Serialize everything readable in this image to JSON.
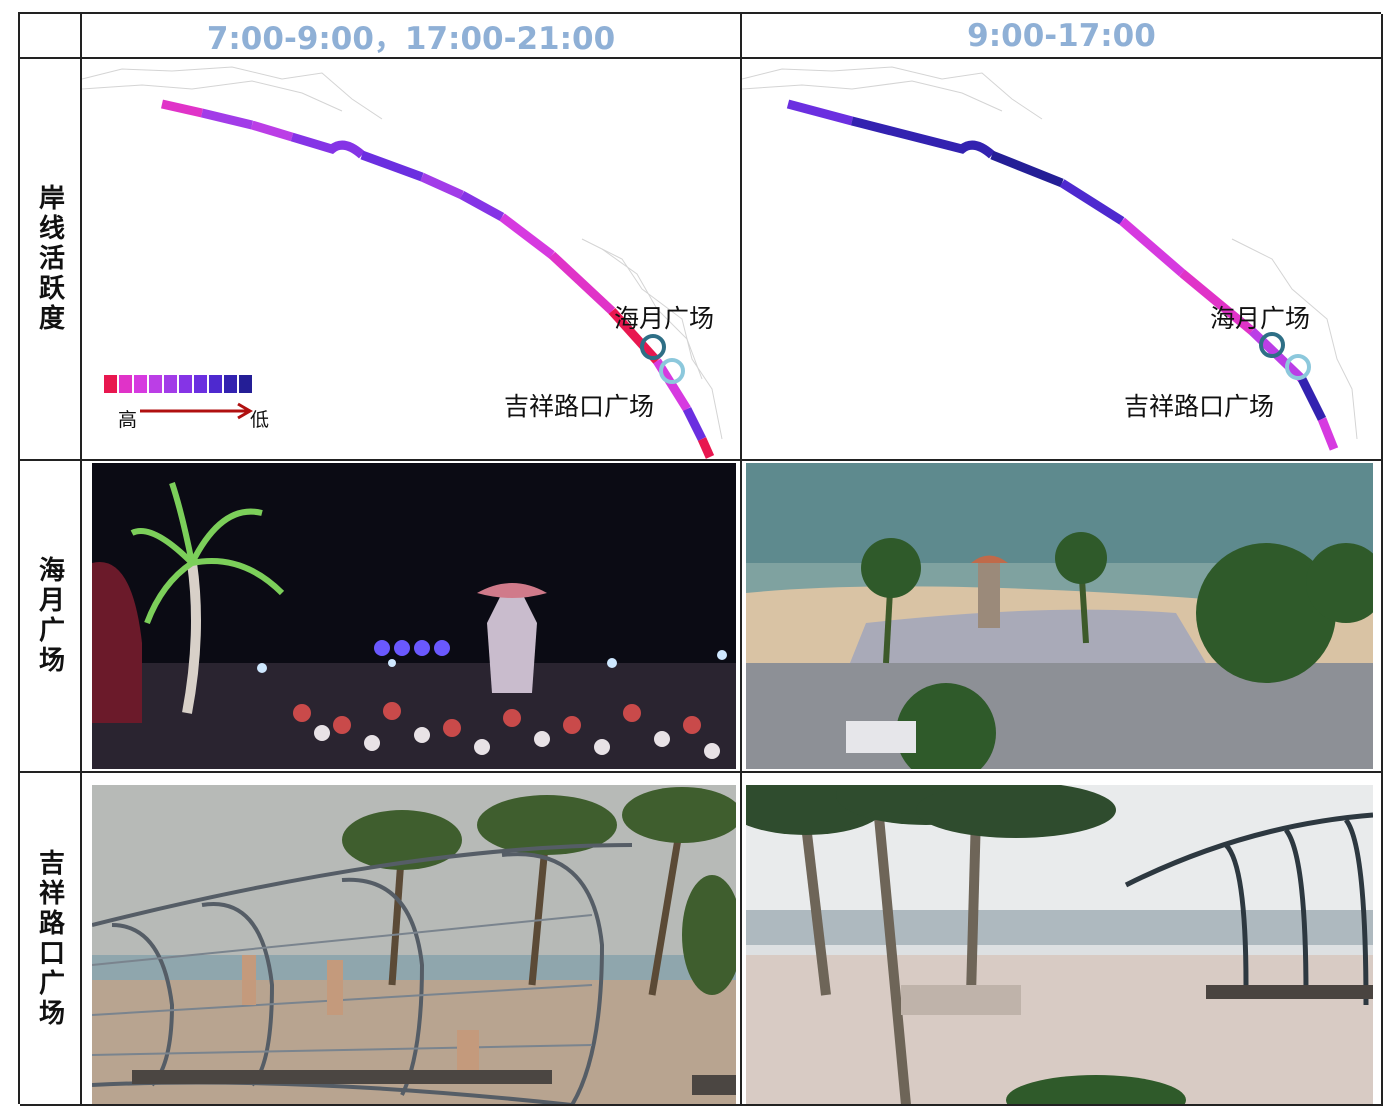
{
  "columns": {
    "peak": "7:00-9:00，17:00-21:00",
    "offpeak": "9:00-17:00"
  },
  "rows": {
    "activity": "岸线活跃度",
    "haiyue": "海月广场",
    "jixiang": "吉祥路口广场"
  },
  "map_labels": {
    "haiyue": "海月广场",
    "jixiang": "吉祥路口广场"
  },
  "legend": {
    "high": "高",
    "low": "低",
    "colors": [
      "#e8174f",
      "#e033c8",
      "#d63ae0",
      "#bb3ee6",
      "#a23ce8",
      "#8534e6",
      "#6b2fe0",
      "#4e29cf",
      "#3322b0",
      "#241e96"
    ]
  },
  "marker_colors": {
    "haiyue": "#2e6f86",
    "jixiang": "#8cc8dc"
  }
}
